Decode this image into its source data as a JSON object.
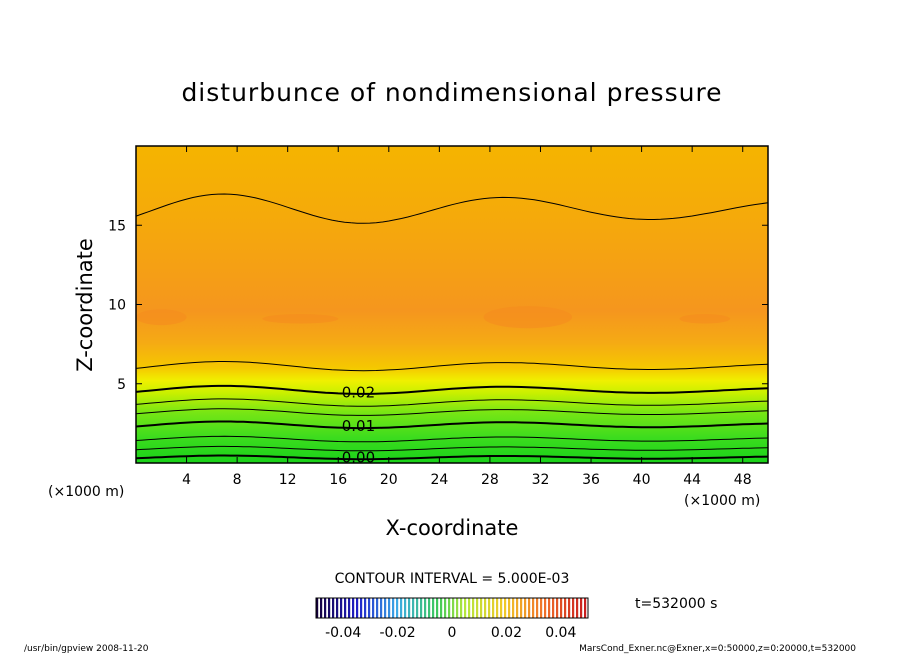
{
  "chart_data": {
    "type": "heatmap",
    "title": "disturbunce of nondimensional pressure",
    "xlabel": "X-coordinate",
    "ylabel": "Z-coordinate",
    "x_unit_left": "(×1000 m)",
    "x_unit_right": "(×1000 m)",
    "xlim": [
      0,
      50
    ],
    "ylim": [
      0,
      20
    ],
    "x_ticks": [
      4,
      8,
      12,
      16,
      20,
      24,
      28,
      32,
      36,
      40,
      44,
      48
    ],
    "y_ticks": [
      5,
      10,
      15
    ],
    "contour_labels": [
      {
        "value": "0.02",
        "x": 17.6,
        "z": 4.5
      },
      {
        "value": "0.01",
        "x": 17.6,
        "z": 2.4
      },
      {
        "value": "0.00",
        "x": 17.6,
        "z": 0.4
      }
    ],
    "contour_interval": "CONTOUR INTERVAL = 5.000E-03",
    "colorbar": {
      "ticks": [
        "-0.04",
        "-0.02",
        "0",
        "0.02",
        "0.04"
      ],
      "min": -0.05,
      "max": 0.05
    },
    "time_label": "t=532000 s",
    "footer_left": "/usr/bin/gpview   2008-11-20",
    "footer_right": "MarsCond_Exner.nc@Exner,x=0:50000,z=0:20000,t=532000",
    "colors": {
      "band_low": "#19d219",
      "band_green": "#5ae61e",
      "band_yellowgreen": "#b4f000",
      "band_yellow": "#f0f000",
      "band_upper": "#f5c800",
      "band_orange": "#f5a514",
      "band_max": "#f58c1e"
    }
  }
}
